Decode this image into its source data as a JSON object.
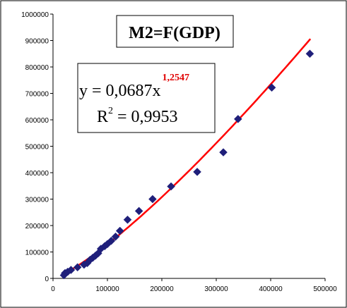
{
  "chart_data": {
    "type": "scatter",
    "title": "M2=F(GDP)",
    "xlabel": "",
    "ylabel": "",
    "xlim": [
      0,
      500000
    ],
    "ylim": [
      0,
      1000000
    ],
    "xticks": [
      0,
      100000,
      200000,
      300000,
      400000,
      500000
    ],
    "yticks": [
      0,
      100000,
      200000,
      300000,
      400000,
      500000,
      600000,
      700000,
      800000,
      900000,
      1000000
    ],
    "grid": false,
    "legend": "none",
    "colors": {
      "points": "#1f1f7a",
      "trendline": "#ff0000",
      "exponent": "#e00000"
    },
    "equation": {
      "prefix": "y = 0,0687x",
      "exponent": "1,2547",
      "r2_label": "R",
      "r2_sup": "2",
      "r2_value": " = 0,9953"
    },
    "trendline": {
      "type": "power",
      "coefficient": 0.0687,
      "exponent": 1.2547,
      "x_range": [
        18000,
        473000
      ]
    },
    "series": [
      {
        "points": [
          [
            20000,
            12000
          ],
          [
            22000,
            20000
          ],
          [
            27000,
            25000
          ],
          [
            33000,
            32000
          ],
          [
            45000,
            42000
          ],
          [
            57000,
            52000
          ],
          [
            63000,
            58000
          ],
          [
            68000,
            70000
          ],
          [
            73000,
            78000
          ],
          [
            78000,
            86000
          ],
          [
            83000,
            95000
          ],
          [
            88000,
            112000
          ],
          [
            95000,
            122000
          ],
          [
            100000,
            130000
          ],
          [
            107000,
            142000
          ],
          [
            115000,
            158000
          ],
          [
            123000,
            180000
          ],
          [
            137000,
            222000
          ],
          [
            158000,
            255000
          ],
          [
            183000,
            300000
          ],
          [
            217000,
            348000
          ],
          [
            265000,
            403000
          ],
          [
            313000,
            477000
          ],
          [
            340000,
            603000
          ],
          [
            402000,
            722000
          ],
          [
            472000,
            850000
          ]
        ]
      }
    ]
  }
}
